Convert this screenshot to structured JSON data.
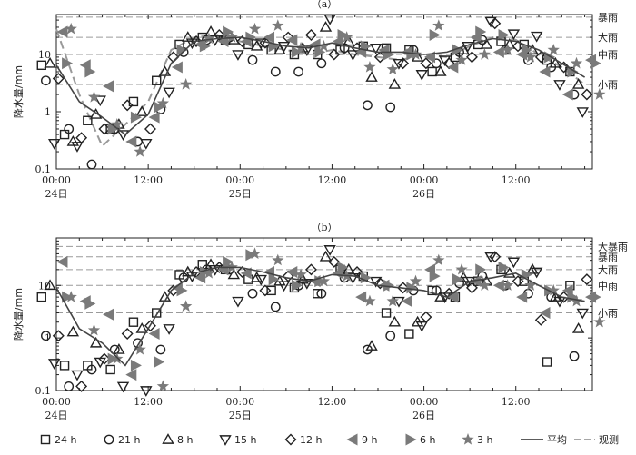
{
  "chart_data": [
    {
      "type": "scatter",
      "title": "（a）",
      "ylabel": "降水量/mm",
      "yscale": "log",
      "ylim": [
        0.1,
        50
      ],
      "xlim": [
        0,
        70
      ],
      "y_ticks": [
        {
          "v": 0.1,
          "label": "0.1"
        },
        {
          "v": 1,
          "label": "1"
        },
        {
          "v": 10,
          "label": "10"
        }
      ],
      "x_ticks": [
        {
          "h": 0,
          "label": "00:00",
          "sub": "24日"
        },
        {
          "h": 12,
          "label": "12:00",
          "sub": ""
        },
        {
          "h": 24,
          "label": "00:00",
          "sub": "25日"
        },
        {
          "h": 36,
          "label": "12:00",
          "sub": ""
        },
        {
          "h": 48,
          "label": "00:00",
          "sub": "26日"
        },
        {
          "h": 60,
          "label": "12:00",
          "sub": ""
        }
      ],
      "thresholds": [
        {
          "v": 3,
          "label": "小雨"
        },
        {
          "v": 10,
          "label": "中雨"
        },
        {
          "v": 20,
          "label": "大雨"
        },
        {
          "v": 45,
          "label": "暴雨"
        }
      ],
      "x": [
        0,
        3,
        6,
        9,
        12,
        15,
        18,
        21,
        24,
        27,
        30,
        33,
        36,
        39,
        42,
        45,
        48,
        51,
        54,
        57,
        60,
        63,
        66,
        69
      ],
      "series": [
        {
          "name": "24 h",
          "marker": "square",
          "values": [
            6.5,
            0.4,
            0.7,
            0.5,
            1.5,
            3.5,
            15,
            20,
            18,
            15,
            12,
            10,
            10,
            12,
            14,
            13,
            12,
            5,
            9,
            15,
            17,
            15,
            8,
            5
          ]
        },
        {
          "name": "21 h",
          "marker": "circle",
          "values": [
            3.5,
            0.5,
            0.12,
            0.5,
            0.3,
            1.1,
            11,
            18,
            20,
            8,
            5,
            5,
            7,
            13,
            1.3,
            1.2,
            12,
            7,
            11,
            18,
            12,
            8,
            6,
            2
          ]
        },
        {
          "name": "8 h",
          "marker": "triangle-up",
          "values": [
            7,
            0.3,
            0.9,
            0.6,
            1.0,
            5,
            20,
            25,
            18,
            14,
            12,
            13,
            30,
            17,
            4,
            3,
            9,
            5,
            12,
            15,
            15,
            12,
            7,
            3
          ]
        },
        {
          "name": "15 h",
          "marker": "triangle-down",
          "values": [
            0.28,
            0.25,
            1.6,
            0.4,
            0.28,
            2.2,
            16,
            18,
            10,
            16,
            14,
            12,
            42,
            10,
            13,
            7,
            4.5,
            8,
            14,
            38,
            23,
            21,
            3,
            1
          ]
        },
        {
          "name": "12 h",
          "marker": "diamond",
          "values": [
            3.8,
            0.35,
            0.5,
            1.3,
            0.5,
            9,
            17,
            22,
            17,
            16,
            20,
            22,
            10,
            13,
            9,
            7,
            7,
            7,
            9,
            35,
            14,
            9,
            6,
            2
          ]
        },
        {
          "name": "9 h",
          "marker": "tri-left",
          "values": [
            25,
            6.5,
            2.8,
            0.3,
            0.8,
            6,
            15,
            17,
            17,
            20,
            18,
            15,
            17,
            11,
            12,
            11,
            9,
            6,
            20,
            11,
            10,
            5,
            2,
            8
          ]
        },
        {
          "name": "6 h",
          "marker": "tri-right",
          "values": [
            7,
            5,
            0.5,
            0.8,
            1.2,
            12,
            14,
            25,
            20,
            14,
            11,
            11,
            22,
            14,
            10,
            10,
            22,
            12,
            25,
            22,
            12,
            9,
            5,
            7
          ]
        },
        {
          "name": "3 h",
          "marker": "star",
          "values": [
            28,
            1.8,
            0.6,
            0.2,
            1.4,
            3,
            19,
            20,
            28,
            32,
            13,
            14,
            20,
            6,
            5.5,
            10,
            32,
            8,
            10,
            12,
            9,
            12,
            7,
            2
          ]
        }
      ],
      "avg": [
        6.5,
        1.5,
        0.8,
        0.4,
        0.9,
        7,
        17,
        19,
        20,
        17,
        14,
        13,
        16,
        13,
        11,
        11,
        10,
        11,
        15,
        19,
        17,
        12,
        7,
        4
      ],
      "obs": [
        28,
        2,
        0.25,
        0.6,
        1.5,
        12,
        20,
        22,
        17,
        14,
        12,
        10,
        12,
        10,
        9,
        8,
        10,
        9,
        14,
        20,
        18,
        10,
        6,
        3
      ]
    },
    {
      "type": "scatter",
      "title": "（b）",
      "ylabel": "降水量/mm",
      "yscale": "log",
      "ylim": [
        0.1,
        80
      ],
      "xlim": [
        0,
        70
      ],
      "y_ticks": [
        {
          "v": 0.1,
          "label": "0.1"
        },
        {
          "v": 1,
          "label": "1"
        },
        {
          "v": 10,
          "label": "10"
        }
      ],
      "x_ticks": [
        {
          "h": 0,
          "label": "00:00",
          "sub": "24日"
        },
        {
          "h": 12,
          "label": "12:00",
          "sub": ""
        },
        {
          "h": 24,
          "label": "00:00",
          "sub": "25日"
        },
        {
          "h": 36,
          "label": "12:00",
          "sub": ""
        },
        {
          "h": 48,
          "label": "00:00",
          "sub": "26日"
        },
        {
          "h": 60,
          "label": "12:00",
          "sub": ""
        }
      ],
      "thresholds": [
        {
          "v": 3,
          "label": "小雨"
        },
        {
          "v": 10,
          "label": "中雨"
        },
        {
          "v": 20,
          "label": "大雨"
        },
        {
          "v": 35,
          "label": "暴雨"
        },
        {
          "v": 55,
          "label": "大暴雨"
        }
      ],
      "x": [
        0,
        3,
        6,
        9,
        12,
        15,
        18,
        21,
        24,
        27,
        30,
        33,
        36,
        39,
        42,
        45,
        48,
        51,
        54,
        57,
        60,
        63,
        66,
        69
      ],
      "series": [
        {
          "name": "24 h",
          "marker": "square",
          "values": [
            6,
            0.3,
            0.3,
            0.25,
            2,
            3,
            16,
            25,
            20,
            13,
            8,
            9,
            7,
            20,
            15,
            3,
            1.2,
            8,
            6,
            12,
            20,
            12,
            0.35,
            10
          ]
        },
        {
          "name": "21 h",
          "marker": "circle",
          "values": [
            1.1,
            0.12,
            0.25,
            0.6,
            0.8,
            0.6,
            14,
            20,
            20,
            7,
            3.9,
            10,
            7,
            14,
            0.6,
            1.1,
            8,
            8,
            11,
            15,
            10,
            7,
            6,
            0.45
          ]
        },
        {
          "name": "8 h",
          "marker": "triangle-up",
          "values": [
            10,
            1.3,
            0.8,
            0.6,
            1.5,
            6,
            18,
            25,
            16,
            14,
            12,
            13,
            35,
            20,
            0.7,
            2,
            2,
            6,
            14,
            12,
            17,
            20,
            6,
            1.5
          ]
        },
        {
          "name": "15 h",
          "marker": "triangle-down",
          "values": [
            0.33,
            0.2,
            0.35,
            0.12,
            0.1,
            1.5,
            15,
            20,
            5,
            13,
            10,
            11,
            48,
            14,
            12,
            5,
            1.7,
            6,
            12,
            35,
            28,
            18,
            5,
            3
          ]
        },
        {
          "name": "12 h",
          "marker": "diamond",
          "values": [
            1.1,
            0.12,
            0.4,
            1.2,
            1.7,
            8,
            18,
            22,
            18,
            8,
            15,
            20,
            28,
            18,
            11,
            9,
            2.5,
            7,
            9,
            35,
            12,
            2.2,
            6,
            13
          ]
        },
        {
          "name": "9 h",
          "marker": "tri-left",
          "values": [
            28,
            5,
            2.8,
            0.2,
            1.2,
            9,
            14,
            20,
            17,
            18,
            18,
            12,
            17,
            6,
            10,
            5,
            20,
            6,
            12,
            10,
            6,
            3,
            8,
            6
          ]
        },
        {
          "name": "6 h",
          "marker": "tri-right",
          "values": [
            6,
            4.5,
            0.4,
            0.3,
            0.35,
            8,
            18,
            28,
            38,
            13,
            10,
            12,
            22,
            14,
            10,
            9,
            15,
            13,
            20,
            22,
            16,
            8,
            6,
            6
          ]
        },
        {
          "name": "3 h",
          "marker": "star",
          "values": [
            6,
            1.4,
            0.4,
            0.6,
            0.12,
            4,
            17,
            22,
            40,
            30,
            16,
            12,
            15,
            5,
            5,
            12,
            30,
            20,
            10,
            10,
            10,
            8,
            5,
            2
          ]
        }
      ],
      "avg": [
        9,
        1.5,
        0.8,
        0.3,
        1.5,
        8,
        17,
        22,
        22,
        18,
        14,
        12,
        16,
        15,
        10,
        9,
        8,
        6,
        12,
        14,
        17,
        10,
        6,
        5
      ]
    }
  ],
  "legend": {
    "items": [
      "24 h",
      "21 h",
      "8 h",
      "15 h",
      "12 h",
      "9 h",
      "6 h",
      "3 h"
    ],
    "avg_label": "平均",
    "obs_label": "观测"
  }
}
